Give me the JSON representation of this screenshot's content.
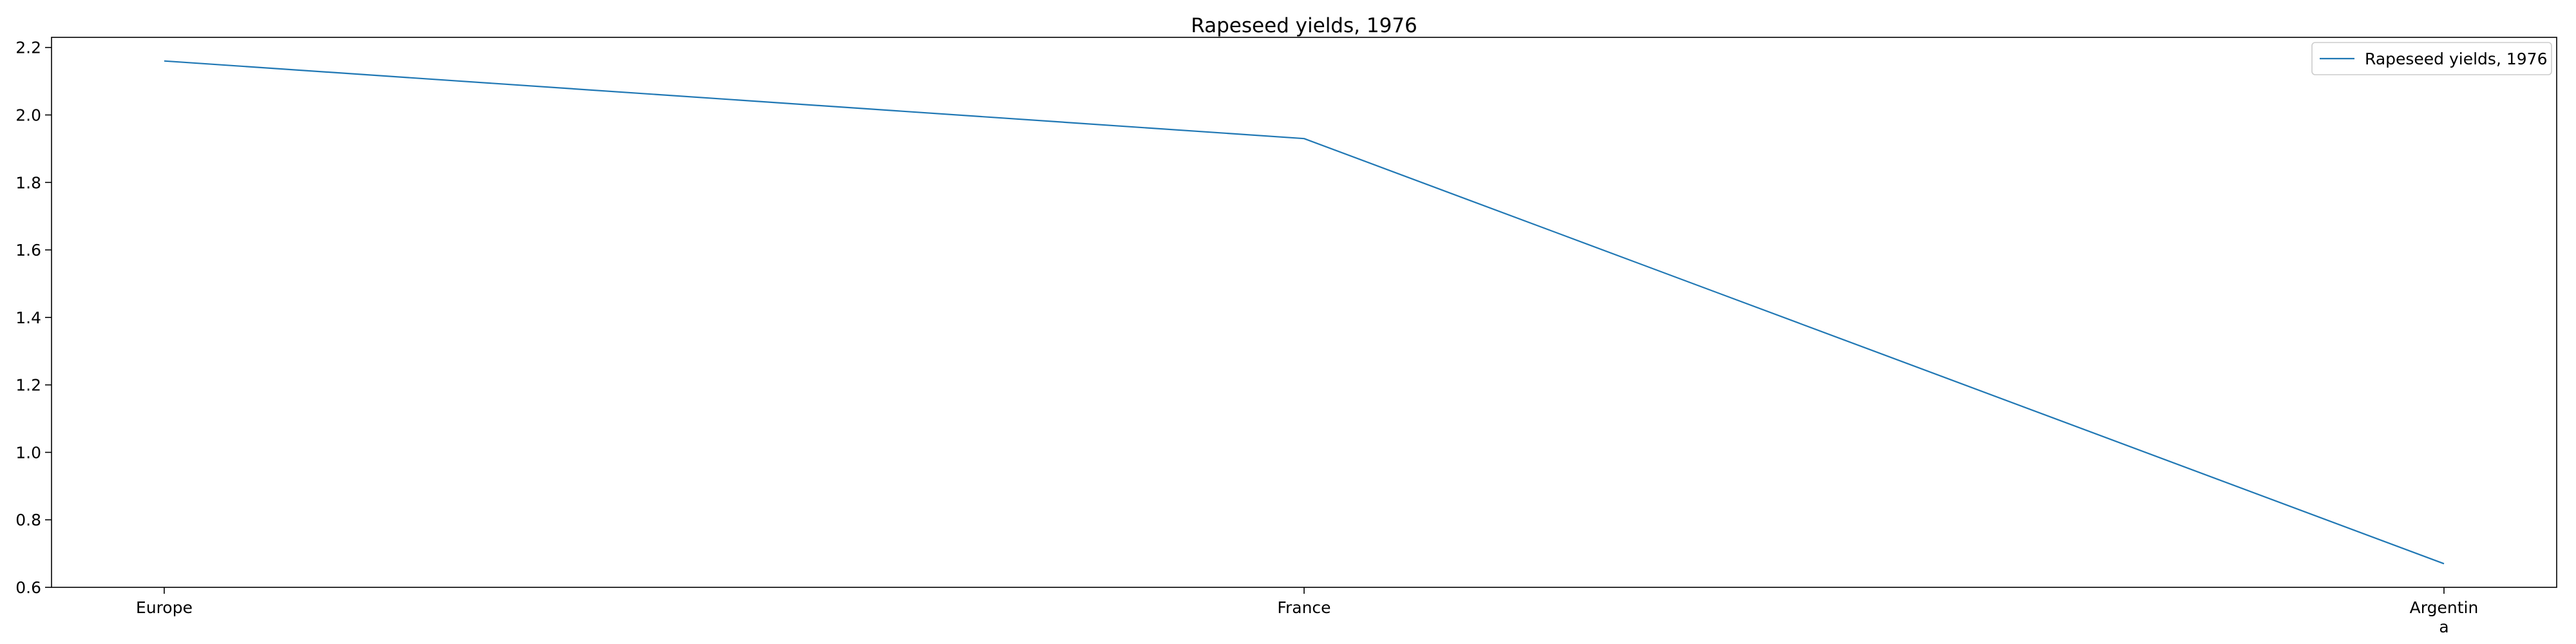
{
  "chart_data": {
    "type": "line",
    "title": "Rapeseed yields, 1976",
    "xlabel": "",
    "ylabel": "",
    "categories": [
      "Europe",
      "France",
      "Argentina"
    ],
    "category_tick_lines": [
      [
        "Europe"
      ],
      [
        "France"
      ],
      [
        "Argentin",
        "a"
      ]
    ],
    "series": [
      {
        "name": "Rapeseed yields, 1976",
        "values": [
          2.16,
          1.93,
          0.67
        ],
        "color": "#1f77b4"
      }
    ],
    "ylim": [
      0.6,
      2.23
    ],
    "yticks": [
      "0.6",
      "0.8",
      "1.0",
      "1.2",
      "1.4",
      "1.6",
      "1.8",
      "2.0",
      "2.2"
    ],
    "grid": false,
    "legend_position": "top-right"
  }
}
